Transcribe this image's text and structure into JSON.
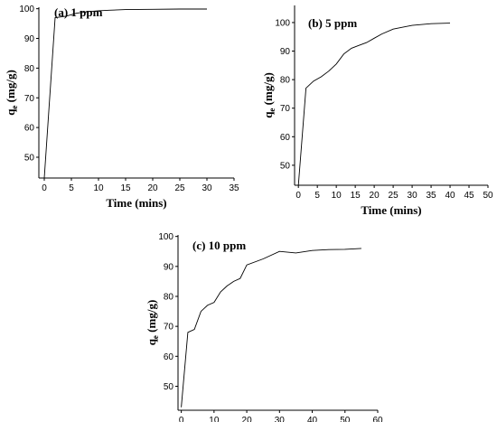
{
  "chart_data": [
    {
      "type": "line",
      "title": "(a) 1 ppm",
      "xlabel": "Time (mins)",
      "ylabel": "q",
      "ylabel_sub": "e",
      "ylabel_unit": "(mg/g)",
      "xlim": [
        -1,
        35
      ],
      "ylim": [
        43,
        100.5
      ],
      "xticks": [
        0,
        5,
        10,
        15,
        20,
        25,
        30,
        35
      ],
      "yticks": [
        50,
        60,
        70,
        80,
        90,
        100
      ],
      "x": [
        0,
        2,
        4,
        6,
        8,
        10,
        12,
        15,
        20,
        25,
        30
      ],
      "y": [
        43,
        97,
        97.5,
        98.5,
        99,
        99.3,
        99.5,
        99.7,
        99.8,
        99.9,
        99.9
      ]
    },
    {
      "type": "line",
      "title": "(b) 5 ppm",
      "xlabel": "Time (mins)",
      "ylabel": "q",
      "ylabel_sub": "e",
      "ylabel_unit": "(mg/g)",
      "xlim": [
        -1,
        50
      ],
      "ylim": [
        43,
        106
      ],
      "xticks": [
        0,
        5,
        10,
        15,
        20,
        25,
        30,
        35,
        40,
        45,
        50
      ],
      "yticks": [
        50,
        60,
        70,
        80,
        90,
        100
      ],
      "x": [
        0,
        2,
        4,
        6,
        8,
        10,
        12,
        14,
        16,
        18,
        20,
        22,
        25,
        28,
        30,
        35,
        40
      ],
      "y": [
        43,
        77,
        79.5,
        81,
        83,
        85.5,
        89,
        91,
        92,
        93,
        94.5,
        96,
        97.7,
        98.5,
        99,
        99.6,
        99.8
      ]
    },
    {
      "type": "line",
      "title": "(c) 10 ppm",
      "xlabel": "",
      "ylabel": "q",
      "ylabel_sub": "e",
      "ylabel_unit": "(mg/g)",
      "xlim": [
        -1,
        60
      ],
      "ylim": [
        42,
        100.5
      ],
      "xticks": [
        0,
        10,
        20,
        30,
        40,
        50,
        60
      ],
      "yticks": [
        50,
        60,
        70,
        80,
        90,
        100
      ],
      "x": [
        0,
        2,
        4,
        6,
        8,
        10,
        12,
        14,
        16,
        18,
        20,
        25,
        30,
        35,
        40,
        45,
        50,
        55
      ],
      "y": [
        43,
        68,
        69,
        75,
        77,
        78,
        81.5,
        83.5,
        85,
        86,
        90.5,
        92.5,
        95,
        94.5,
        95.3,
        95.6,
        95.7,
        96
      ]
    }
  ]
}
